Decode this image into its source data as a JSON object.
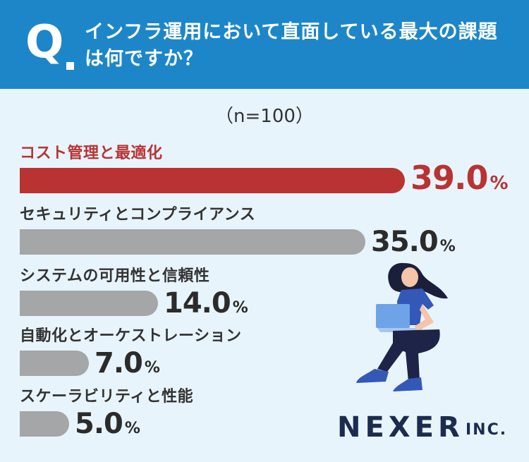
{
  "header": {
    "q_mark": "Q",
    "question": "インフラ運用において直面している最大の課題は何ですか？"
  },
  "chart_data": {
    "type": "bar",
    "orientation": "horizontal",
    "note": "（n=100）",
    "unit": "%",
    "categories": [
      "コスト管理と最適化",
      "セキュリティとコンプライアンス",
      "システムの可用性と信頼性",
      "自動化とオーケストレーション",
      "スケーラビリティと性能"
    ],
    "values": [
      39.0,
      35.0,
      14.0,
      7.0,
      5.0
    ],
    "value_labels": [
      "39.0",
      "35.0",
      "14.0",
      "7.0",
      "5.0"
    ],
    "highlight_index": 0,
    "colors": {
      "highlight": "#b93333",
      "default": "#a5a6a8"
    }
  },
  "brand": {
    "name": "NEXER",
    "suffix": "INC."
  }
}
